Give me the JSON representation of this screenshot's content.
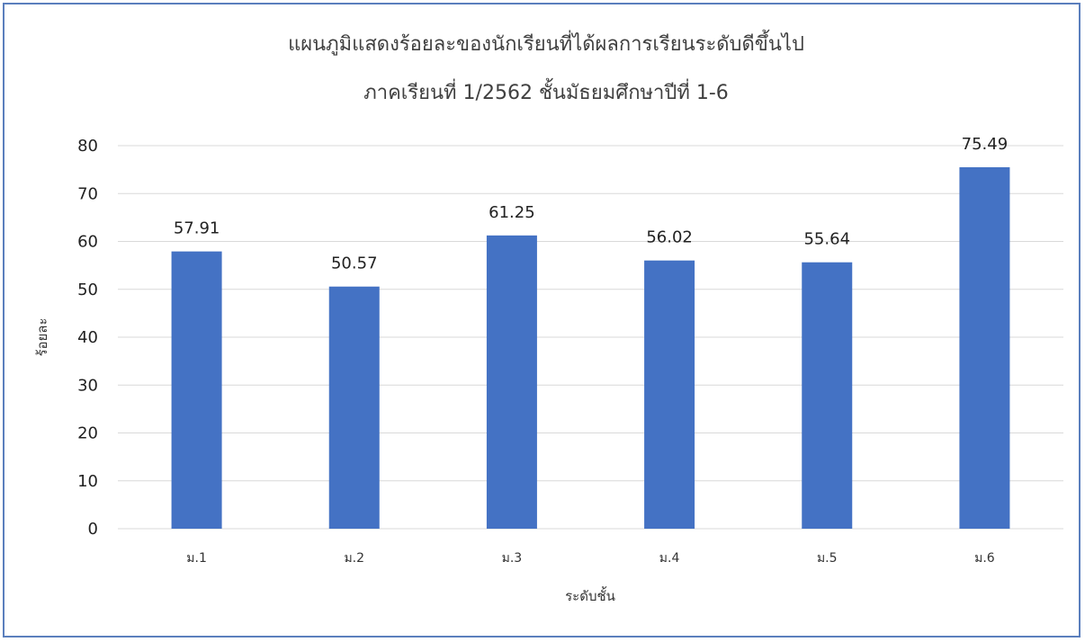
{
  "chart_data": {
    "type": "bar",
    "title": "แผนภูมิแสดงร้อยละของนักเรียนที่ได้ผลการเรียนระดับดีขึ้นไป",
    "subtitle": "ภาคเรียนที่ 1/2562 ชั้นมัธยมศึกษาปีที่ 1-6",
    "categories": [
      "ม.1",
      "ม.2",
      "ม.3",
      "ม.4",
      "ม.5",
      "ม.6"
    ],
    "values": [
      57.91,
      50.57,
      61.25,
      56.02,
      55.64,
      75.49
    ],
    "data_labels": [
      "57.91",
      "50.57",
      "61.25",
      "56.02",
      "55.64",
      "75.49"
    ],
    "xlabel": "ระดับชั้น",
    "ylabel": "ร้อยละ",
    "ylim": [
      0,
      80
    ],
    "yticks": [
      0,
      10,
      20,
      30,
      40,
      50,
      60,
      70,
      80
    ],
    "grid": true,
    "legend": "none",
    "bar_color": "#4472c4",
    "grid_color": "#d9d9d9",
    "frame_color": "#5b7fbd"
  }
}
